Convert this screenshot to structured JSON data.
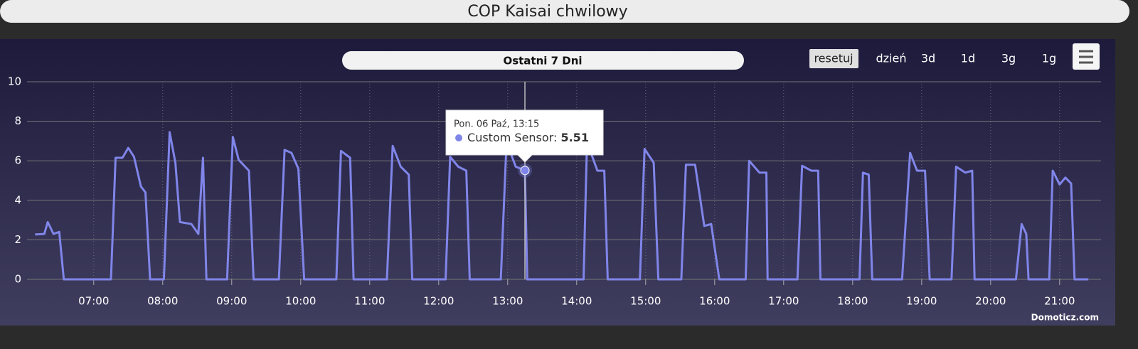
{
  "header": {
    "title": "COP Kaisai chwilowy"
  },
  "controls": {
    "range": "Ostatni 7 Dni",
    "buttons": [
      "resetuj",
      "dzień",
      "3d",
      "1d",
      "3g",
      "1g"
    ]
  },
  "credits": "Domoticz.com",
  "tooltip": {
    "header": "Pon. 06 Paź, 13:15",
    "label": "Custom Sensor:"
  },
  "chart_data": {
    "type": "line",
    "x": [
      "06:09",
      "06:17",
      "06:20",
      "06:25",
      "06:30",
      "06:34",
      "07:15",
      "07:19",
      "07:25",
      "07:30",
      "07:35",
      "07:41",
      "07:45",
      "07:49",
      "08:01",
      "08:06",
      "08:11",
      "08:15",
      "08:25",
      "08:31",
      "08:35",
      "08:38",
      "08:56",
      "09:01",
      "09:06",
      "09:15",
      "09:19",
      "09:41",
      "09:46",
      "09:52",
      "09:58",
      "10:03",
      "10:31",
      "10:35",
      "10:43",
      "10:46",
      "11:15",
      "11:20",
      "11:27",
      "11:34",
      "11:37",
      "12:06",
      "12:10",
      "12:17",
      "12:24",
      "12:27",
      "12:54",
      "12:59",
      "13:07",
      "13:15",
      "13:17",
      "14:06",
      "14:09",
      "14:18",
      "14:24",
      "14:27",
      "14:55",
      "14:59",
      "15:07",
      "15:11",
      "15:31",
      "15:35",
      "15:43",
      "15:51",
      "15:57",
      "16:04",
      "16:27",
      "16:30",
      "16:39",
      "16:45",
      "16:46",
      "17:12",
      "17:16",
      "17:24",
      "17:30",
      "17:32",
      "18:06",
      "18:09",
      "18:14",
      "18:17",
      "18:43",
      "18:50",
      "18:56",
      "19:03",
      "19:07",
      "19:26",
      "19:30",
      "19:38",
      "19:44",
      "19:46",
      "20:22",
      "20:27",
      "20:31",
      "20:33",
      "20:51",
      "20:54",
      "21:00",
      "21:05",
      "21:10",
      "21:13",
      "21:25"
    ],
    "series": [
      {
        "name": "Custom Sensor",
        "color": "#8085e9",
        "values": [
          2.27,
          2.3,
          2.9,
          2.3,
          2.4,
          0,
          0,
          6.15,
          6.15,
          6.65,
          6.2,
          4.7,
          4.4,
          0,
          0,
          7.45,
          5.9,
          2.9,
          2.8,
          2.3,
          6.15,
          0,
          0,
          7.2,
          6.05,
          5.5,
          0,
          0,
          6.55,
          6.4,
          5.6,
          0,
          0,
          6.5,
          6.15,
          0,
          0,
          6.75,
          5.7,
          5.3,
          0,
          0,
          6.2,
          5.7,
          5.5,
          0,
          0,
          6.95,
          5.7,
          5.51,
          0,
          0,
          6.95,
          5.5,
          5.5,
          0,
          0,
          6.6,
          5.9,
          0,
          0,
          5.8,
          5.8,
          2.7,
          2.8,
          0,
          0,
          6.0,
          5.4,
          5.4,
          0,
          0,
          5.75,
          5.5,
          5.5,
          0,
          0,
          5.4,
          5.3,
          0,
          0,
          6.4,
          5.5,
          5.5,
          0,
          0,
          5.7,
          5.4,
          5.5,
          0,
          0,
          2.8,
          2.3,
          0,
          0,
          5.5,
          4.8,
          5.15,
          4.85,
          0,
          0
        ]
      }
    ],
    "xlim": [
      "06:02",
      "21:36"
    ],
    "xticks": [
      "07:00",
      "08:00",
      "09:00",
      "10:00",
      "11:00",
      "12:00",
      "13:00",
      "14:00",
      "15:00",
      "16:00",
      "17:00",
      "18:00",
      "19:00",
      "20:00",
      "21:00"
    ],
    "ylim": [
      0,
      10
    ],
    "yticks": [
      0,
      2,
      4,
      6,
      8,
      10
    ],
    "grid": true
  }
}
